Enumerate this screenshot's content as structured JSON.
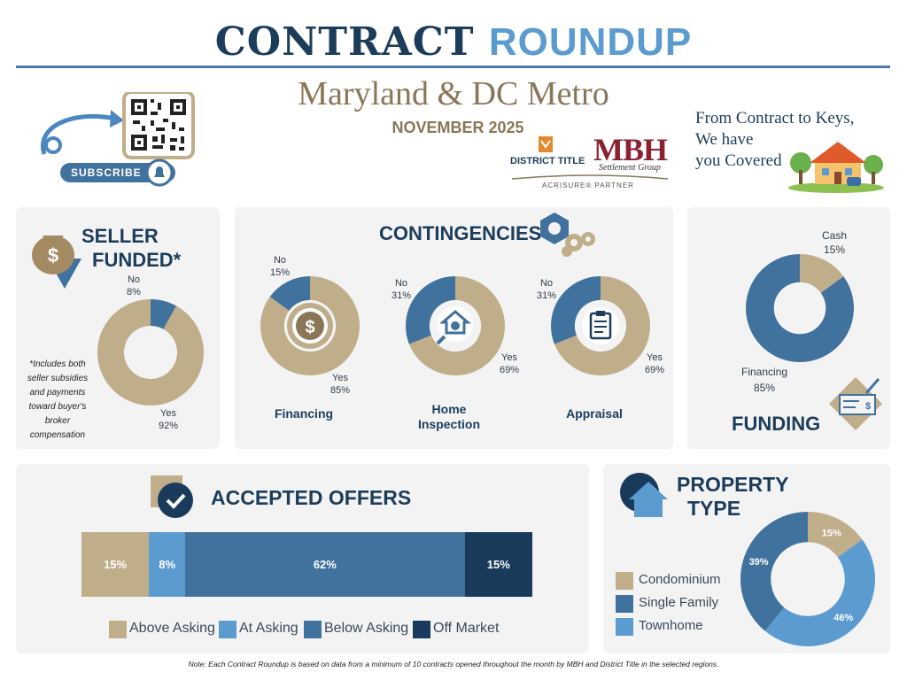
{
  "header": {
    "title_part1": "CONTRACT",
    "title_part2": "ROUNDUP",
    "region": "Maryland & DC Metro",
    "month": "NOVEMBER 2025",
    "subscribe_label": "SUBSCRIBE",
    "tagline_line1": "From Contract to Keys,",
    "tagline_line2": "We have",
    "tagline_line3": "you Covered",
    "logo_district": "DISTRICT TITLE",
    "logo_mbh": "MBH",
    "logo_mbh_sub": "Settlement Group",
    "logo_partner": "ACRISURE® PARTNER"
  },
  "sections": {
    "seller_title_1": "SELLER",
    "seller_title_2": "FUNDED*",
    "seller_note": "*Includes both seller subsidies and payments toward buyer's broker compensation",
    "contingencies_title": "CONTINGENCIES",
    "funding_title": "FUNDING",
    "offers_title": "ACCEPTED OFFERS",
    "property_title_1": "PROPERTY",
    "property_title_2": "TYPE"
  },
  "colors": {
    "tan": "#c0ad8a",
    "steel": "#41729e",
    "light_blue": "#5b9bd0",
    "navy": "#1a3a5c",
    "title_navy": "#1c3d5a",
    "gold": "#8a7657"
  },
  "chart_data": [
    {
      "type": "pie",
      "name": "seller_funded",
      "labels": [
        "Yes",
        "No"
      ],
      "values": [
        92,
        8
      ],
      "label_text": [
        "Yes\n92%",
        "No\n8%"
      ]
    },
    {
      "type": "pie",
      "name": "contingency_financing",
      "category": "Financing",
      "labels": [
        "Yes",
        "No"
      ],
      "values": [
        85,
        15
      ],
      "label_text": [
        "Yes\n85%",
        "No\n15%"
      ]
    },
    {
      "type": "pie",
      "name": "contingency_home_inspection",
      "category": "Home Inspection",
      "labels": [
        "Yes",
        "No"
      ],
      "values": [
        69,
        31
      ],
      "label_text": [
        "Yes\n69%",
        "No\n31%"
      ]
    },
    {
      "type": "pie",
      "name": "contingency_appraisal",
      "category": "Appraisal",
      "labels": [
        "Yes",
        "No"
      ],
      "values": [
        69,
        31
      ],
      "label_text": [
        "Yes\n69%",
        "No\n31%"
      ]
    },
    {
      "type": "pie",
      "name": "funding",
      "labels": [
        "Financing",
        "Cash"
      ],
      "values": [
        85,
        15
      ],
      "label_text": [
        "Financing\n85%",
        "Cash\n15%"
      ]
    },
    {
      "type": "bar",
      "name": "accepted_offers",
      "orientation": "horizontal-stacked",
      "categories": [
        "Above Asking",
        "At Asking",
        "Below Asking",
        "Off Market"
      ],
      "values": [
        15,
        8,
        62,
        15
      ],
      "value_labels": [
        "15%",
        "8%",
        "62%",
        "15%"
      ]
    },
    {
      "type": "pie",
      "name": "property_type",
      "labels": [
        "Condominium",
        "Townhome",
        "Single Family"
      ],
      "values": [
        15,
        46,
        39
      ],
      "value_labels": [
        "15%",
        "46%",
        "39%"
      ]
    }
  ],
  "legend": {
    "offers": [
      "Above Asking",
      "At Asking",
      "Below Asking",
      "Off Market"
    ],
    "property": [
      "Condominium",
      "Single Family",
      "Townhome"
    ]
  },
  "footer": {
    "note": "Note: Each Contract Roundup is based on data from a minimum of 10 contracts opened throughout the month by MBH and District Title in the selected regions."
  }
}
